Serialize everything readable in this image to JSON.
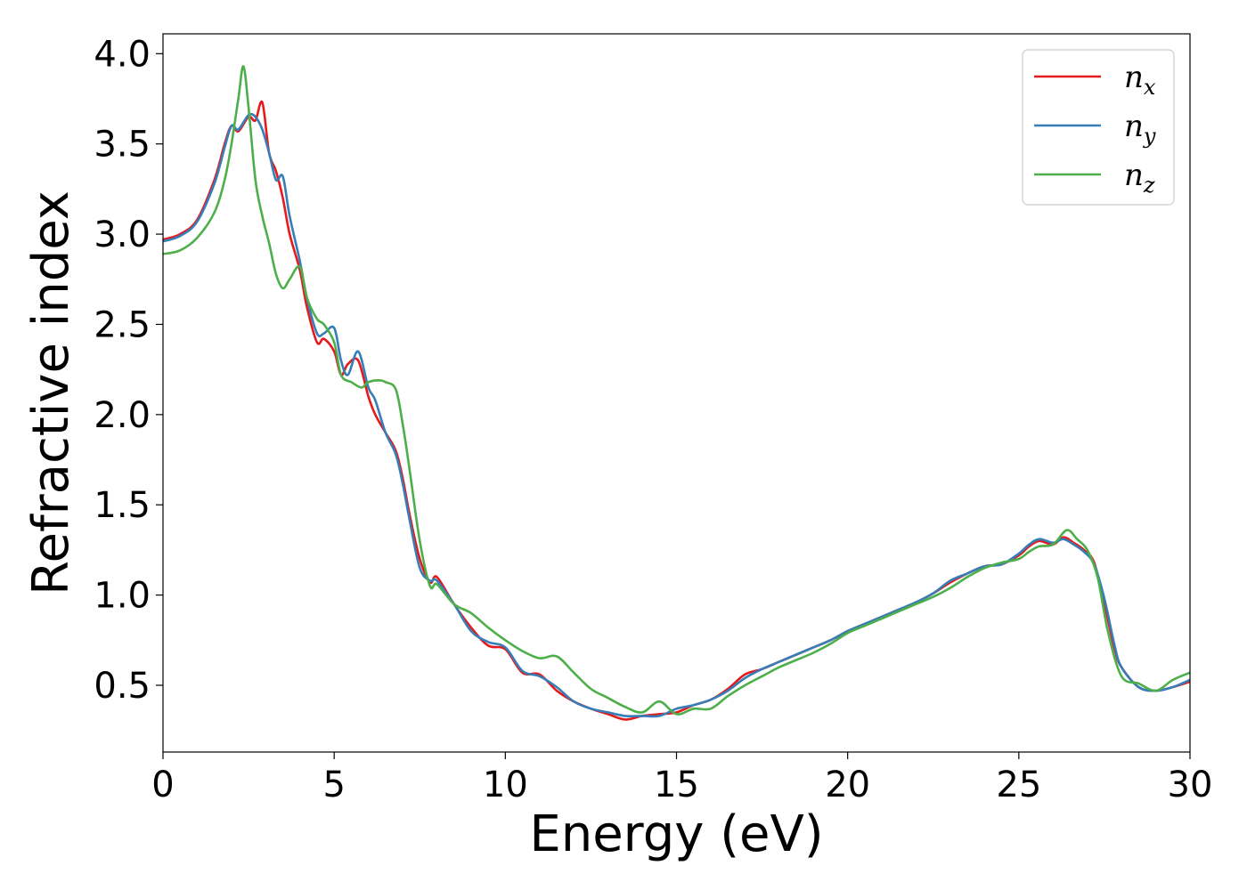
{
  "chart_data": {
    "type": "line",
    "title": "",
    "xlabel": "Energy (eV)",
    "ylabel": "Refractive index",
    "xlim": [
      0,
      30
    ],
    "ylim": [
      0.13,
      4.11
    ],
    "xticks": [
      0,
      5,
      10,
      15,
      20,
      25,
      30
    ],
    "xtick_labels": [
      "0",
      "5",
      "10",
      "15",
      "20",
      "25",
      "30"
    ],
    "yticks": [
      0.5,
      1.0,
      1.5,
      2.0,
      2.5,
      3.0,
      3.5,
      4.0
    ],
    "ytick_labels": [
      "0.5",
      "1.0",
      "1.5",
      "2.0",
      "2.5",
      "3.0",
      "3.5",
      "4.0"
    ],
    "grid": false,
    "legend": {
      "position": "top-right",
      "entries": [
        {
          "base": "n",
          "sub": "x",
          "color": "#e41a1c"
        },
        {
          "base": "n",
          "sub": "y",
          "color": "#377eb8"
        },
        {
          "base": "n",
          "sub": "z",
          "color": "#4daf4a"
        }
      ]
    },
    "series": [
      {
        "name": "n_x",
        "color": "#e41a1c",
        "x": [
          0,
          0.5,
          1.0,
          1.5,
          1.8,
          2.0,
          2.2,
          2.5,
          2.7,
          2.9,
          3.1,
          3.3,
          3.5,
          3.7,
          4.0,
          4.2,
          4.5,
          4.7,
          5.0,
          5.2,
          5.4,
          5.7,
          6.0,
          6.2,
          6.5,
          6.8,
          7.0,
          7.2,
          7.5,
          7.8,
          8.0,
          8.5,
          9.0,
          9.5,
          10.0,
          10.5,
          11.0,
          11.5,
          12.0,
          12.5,
          13.0,
          13.5,
          14.0,
          14.5,
          15.0,
          15.5,
          16.0,
          16.5,
          17.0,
          17.5,
          18.0,
          18.5,
          19.0,
          19.5,
          20.0,
          20.5,
          21.0,
          21.5,
          22.0,
          22.5,
          23.0,
          23.5,
          24.0,
          24.5,
          25.0,
          25.3,
          25.6,
          26.0,
          26.3,
          26.6,
          26.9,
          27.2,
          27.5,
          27.8,
          28.0,
          28.5,
          29.0,
          29.5,
          30.0
        ],
        "y": [
          2.97,
          3.0,
          3.08,
          3.3,
          3.5,
          3.6,
          3.57,
          3.65,
          3.63,
          3.73,
          3.45,
          3.35,
          3.2,
          3.0,
          2.8,
          2.6,
          2.4,
          2.42,
          2.35,
          2.22,
          2.28,
          2.3,
          2.1,
          2.0,
          1.9,
          1.8,
          1.65,
          1.45,
          1.2,
          1.07,
          1.1,
          0.95,
          0.82,
          0.72,
          0.7,
          0.57,
          0.56,
          0.47,
          0.41,
          0.37,
          0.34,
          0.31,
          0.33,
          0.34,
          0.35,
          0.39,
          0.42,
          0.48,
          0.56,
          0.59,
          0.63,
          0.67,
          0.71,
          0.75,
          0.8,
          0.84,
          0.88,
          0.92,
          0.96,
          1.01,
          1.07,
          1.12,
          1.16,
          1.17,
          1.22,
          1.27,
          1.3,
          1.28,
          1.32,
          1.29,
          1.25,
          1.18,
          0.95,
          0.7,
          0.6,
          0.49,
          0.47,
          0.49,
          0.52
        ]
      },
      {
        "name": "n_y",
        "color": "#377eb8",
        "x": [
          0,
          0.5,
          1.0,
          1.5,
          1.8,
          2.0,
          2.2,
          2.5,
          2.7,
          2.9,
          3.1,
          3.3,
          3.5,
          3.7,
          4.0,
          4.2,
          4.5,
          4.7,
          5.0,
          5.2,
          5.4,
          5.7,
          6.0,
          6.2,
          6.5,
          6.8,
          7.0,
          7.2,
          7.5,
          7.8,
          8.0,
          8.5,
          9.0,
          9.5,
          10.0,
          10.5,
          11.0,
          11.5,
          12.0,
          12.5,
          13.0,
          13.5,
          14.0,
          14.5,
          15.0,
          15.5,
          16.0,
          16.5,
          17.0,
          17.5,
          18.0,
          18.5,
          19.0,
          19.5,
          20.0,
          20.5,
          21.0,
          21.5,
          22.0,
          22.5,
          23.0,
          23.5,
          24.0,
          24.5,
          25.0,
          25.3,
          25.6,
          26.0,
          26.3,
          26.6,
          26.9,
          27.2,
          27.5,
          27.8,
          28.0,
          28.5,
          29.0,
          29.5,
          30.0
        ],
        "y": [
          2.96,
          2.99,
          3.07,
          3.28,
          3.48,
          3.6,
          3.58,
          3.66,
          3.65,
          3.58,
          3.45,
          3.3,
          3.32,
          3.1,
          2.85,
          2.65,
          2.45,
          2.45,
          2.48,
          2.3,
          2.22,
          2.35,
          2.15,
          2.08,
          1.9,
          1.78,
          1.62,
          1.42,
          1.15,
          1.08,
          1.08,
          0.95,
          0.8,
          0.74,
          0.71,
          0.58,
          0.55,
          0.49,
          0.41,
          0.37,
          0.35,
          0.33,
          0.33,
          0.33,
          0.37,
          0.39,
          0.42,
          0.47,
          0.54,
          0.59,
          0.63,
          0.67,
          0.71,
          0.75,
          0.8,
          0.84,
          0.88,
          0.92,
          0.96,
          1.01,
          1.08,
          1.12,
          1.16,
          1.17,
          1.23,
          1.28,
          1.31,
          1.29,
          1.31,
          1.28,
          1.24,
          1.17,
          0.98,
          0.72,
          0.6,
          0.49,
          0.47,
          0.49,
          0.53
        ]
      },
      {
        "name": "n_z",
        "color": "#4daf4a",
        "x": [
          0,
          0.5,
          1.0,
          1.5,
          1.8,
          2.0,
          2.2,
          2.35,
          2.5,
          2.7,
          2.9,
          3.1,
          3.3,
          3.5,
          3.7,
          4.0,
          4.2,
          4.5,
          4.7,
          5.0,
          5.2,
          5.5,
          5.8,
          6.0,
          6.3,
          6.5,
          6.8,
          7.0,
          7.2,
          7.5,
          7.8,
          8.0,
          8.5,
          9.0,
          9.5,
          10.0,
          10.5,
          11.0,
          11.5,
          12.0,
          12.5,
          13.0,
          13.5,
          14.0,
          14.5,
          15.0,
          15.5,
          16.0,
          16.5,
          17.0,
          17.5,
          18.0,
          18.5,
          19.0,
          19.5,
          20.0,
          20.5,
          21.0,
          21.5,
          22.0,
          22.5,
          23.0,
          23.5,
          24.0,
          24.5,
          25.0,
          25.3,
          25.6,
          26.0,
          26.4,
          26.7,
          27.0,
          27.3,
          27.6,
          28.0,
          28.5,
          29.0,
          29.5,
          30.0
        ],
        "y": [
          2.89,
          2.91,
          2.98,
          3.12,
          3.3,
          3.5,
          3.75,
          3.93,
          3.7,
          3.3,
          3.1,
          2.95,
          2.78,
          2.7,
          2.75,
          2.82,
          2.65,
          2.53,
          2.5,
          2.4,
          2.22,
          2.18,
          2.15,
          2.18,
          2.19,
          2.18,
          2.14,
          1.95,
          1.7,
          1.3,
          1.05,
          1.06,
          0.95,
          0.9,
          0.82,
          0.75,
          0.69,
          0.65,
          0.66,
          0.57,
          0.48,
          0.43,
          0.38,
          0.35,
          0.41,
          0.34,
          0.37,
          0.37,
          0.44,
          0.5,
          0.55,
          0.6,
          0.64,
          0.68,
          0.73,
          0.79,
          0.83,
          0.87,
          0.91,
          0.95,
          0.99,
          1.04,
          1.1,
          1.15,
          1.18,
          1.2,
          1.24,
          1.27,
          1.28,
          1.36,
          1.31,
          1.25,
          1.1,
          0.8,
          0.55,
          0.51,
          0.47,
          0.53,
          0.57
        ]
      }
    ]
  }
}
